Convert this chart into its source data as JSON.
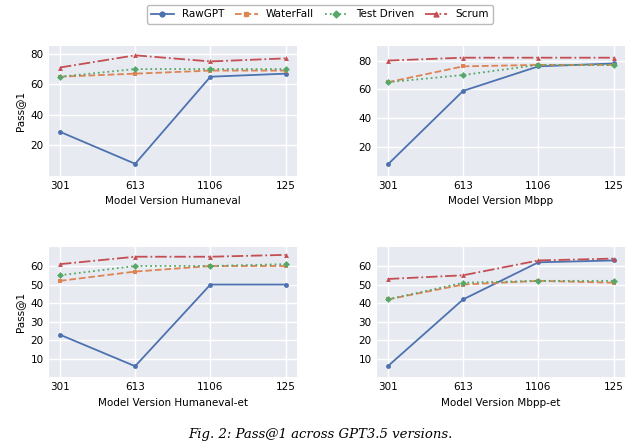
{
  "x_labels": [
    "301",
    "613",
    "1106",
    "125"
  ],
  "x_positions": [
    0,
    1,
    2,
    3
  ],
  "subplots": [
    {
      "title": "Model Version Humaneval",
      "ylim": [
        0,
        85
      ],
      "yticks": [
        20,
        40,
        60,
        80
      ],
      "RawGPT": [
        29,
        8,
        65,
        67
      ],
      "WaterFall": [
        65,
        67,
        69,
        69
      ],
      "TestDriven": [
        65,
        70,
        70,
        70
      ],
      "Scrum": [
        71,
        79,
        75,
        77
      ]
    },
    {
      "title": "Model Version Mbpp",
      "ylim": [
        0,
        90
      ],
      "yticks": [
        20,
        40,
        60,
        80
      ],
      "RawGPT": [
        8,
        59,
        76,
        78
      ],
      "WaterFall": [
        65,
        76,
        77,
        77
      ],
      "TestDriven": [
        65,
        70,
        77,
        77
      ],
      "Scrum": [
        80,
        82,
        82,
        82
      ]
    },
    {
      "title": "Model Version Humaneval-et",
      "ylim": [
        0,
        70
      ],
      "yticks": [
        10,
        20,
        30,
        40,
        50,
        60
      ],
      "RawGPT": [
        23,
        6,
        50,
        50
      ],
      "WaterFall": [
        52,
        57,
        60,
        60
      ],
      "TestDriven": [
        55,
        60,
        60,
        61
      ],
      "Scrum": [
        61,
        65,
        65,
        66
      ]
    },
    {
      "title": "Model Version Mbpp-et",
      "ylim": [
        0,
        70
      ],
      "yticks": [
        10,
        20,
        30,
        40,
        50,
        60
      ],
      "RawGPT": [
        6,
        42,
        62,
        63
      ],
      "WaterFall": [
        42,
        50,
        52,
        51
      ],
      "TestDriven": [
        42,
        51,
        52,
        52
      ],
      "Scrum": [
        53,
        55,
        63,
        64
      ]
    }
  ],
  "colors": {
    "RawGPT": "#4c72b0",
    "WaterFall": "#dd8452",
    "TestDriven": "#55a868",
    "Scrum": "#c44e52"
  },
  "linestyles": {
    "RawGPT": "-",
    "WaterFall": "--",
    "TestDriven": ":",
    "Scrum": "-."
  },
  "markers": {
    "RawGPT": "o",
    "WaterFall": "s",
    "TestDriven": "D",
    "Scrum": "^"
  },
  "legend_labels": [
    "RawGPT",
    "WaterFall",
    "Test Driven",
    "Scrum"
  ],
  "series_keys": [
    "RawGPT",
    "WaterFall",
    "TestDriven",
    "Scrum"
  ],
  "ylabel": "Pass@1",
  "figure_caption": "Fig. 2: Pass@1 across GPT3.5 versions.",
  "bg_color": "#e8eaf2",
  "grid_color": "#ffffff",
  "fig_bg_color": "#ffffff"
}
